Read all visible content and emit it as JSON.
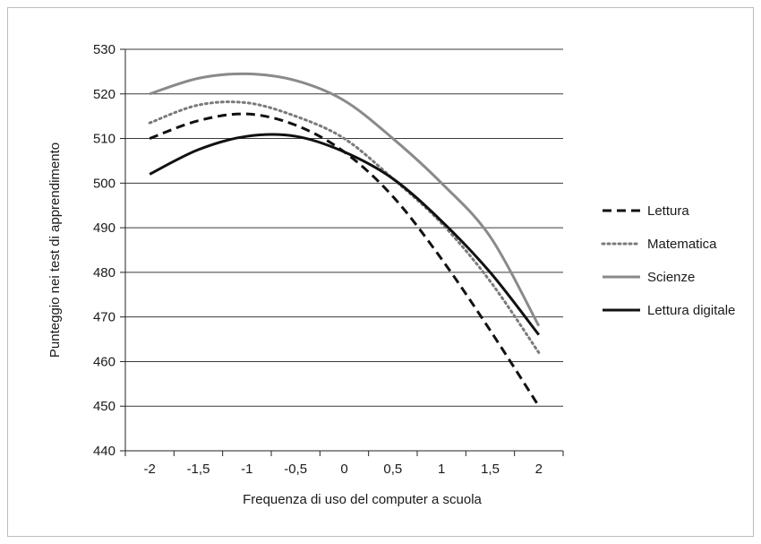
{
  "chart_data": {
    "type": "line",
    "title": "",
    "xlabel": "Frequenza di uso del computer a scuola",
    "ylabel": "Punteggio nei test di apprendimento",
    "x": [
      -2,
      -1.5,
      -1,
      -0.5,
      0,
      0.5,
      1,
      1.5,
      2
    ],
    "x_tick_labels": [
      "-2",
      "-1,5",
      "-1",
      "-0,5",
      "0",
      "0,5",
      "1",
      "1,5",
      "2"
    ],
    "y_ticks": [
      440,
      450,
      460,
      470,
      480,
      490,
      500,
      510,
      520,
      530
    ],
    "ylim": [
      440,
      530
    ],
    "xlim": [
      -2.25,
      2.25
    ],
    "grid": "horizontal",
    "legend_position": "right",
    "series": [
      {
        "name": "Lettura",
        "style": "dashed",
        "color": "#111111",
        "values": [
          510,
          514,
          515.5,
          513,
          507,
          497,
          483,
          467,
          450
        ]
      },
      {
        "name": "Matematica",
        "style": "dotted",
        "color": "#7a7a7a",
        "values": [
          513.5,
          517.5,
          518,
          515,
          510,
          501,
          491,
          478,
          462
        ]
      },
      {
        "name": "Scienze",
        "style": "solid",
        "color": "#8a8a8a",
        "values": [
          520,
          523.5,
          524.5,
          523,
          518.5,
          510,
          500,
          488,
          468
        ]
      },
      {
        "name": "Lettura digitale",
        "style": "solid",
        "color": "#111111",
        "values": [
          502,
          507.5,
          510.5,
          510.5,
          507,
          501,
          491.5,
          480,
          466
        ]
      }
    ]
  }
}
